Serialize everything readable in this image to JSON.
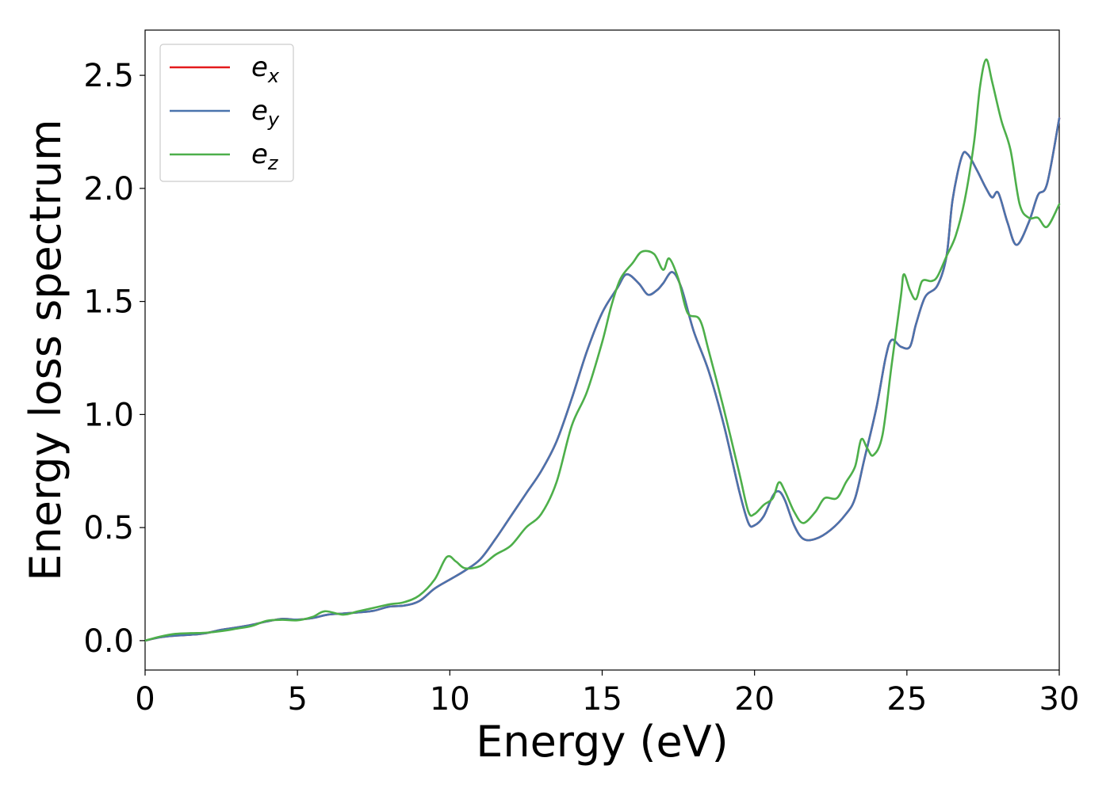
{
  "chart_data": {
    "type": "line",
    "xlabel": "Energy (eV)",
    "ylabel": "Energy loss spectrum",
    "xlim": [
      0,
      30
    ],
    "ylim": [
      -0.13,
      2.7
    ],
    "xticks": [
      0,
      5,
      10,
      15,
      20,
      25,
      30
    ],
    "xtick_labels": [
      "0",
      "5",
      "10",
      "15",
      "20",
      "25",
      "30"
    ],
    "yticks": [
      0.0,
      0.5,
      1.0,
      1.5,
      2.0,
      2.5
    ],
    "ytick_labels": [
      "0.0",
      "0.5",
      "1.0",
      "1.5",
      "2.0",
      "2.5"
    ],
    "grid": false,
    "legend_position": "top-left",
    "series": [
      {
        "name": "e_x",
        "legend_base": "e",
        "legend_sub": "x",
        "color": "#e41a1c",
        "points": [
          [
            0,
            0
          ],
          [
            0.5,
            0.015
          ],
          [
            1,
            0.022
          ],
          [
            1.5,
            0.026
          ],
          [
            2,
            0.033
          ],
          [
            2.5,
            0.048
          ],
          [
            3,
            0.058
          ],
          [
            3.5,
            0.07
          ],
          [
            4,
            0.085
          ],
          [
            4.5,
            0.096
          ],
          [
            5,
            0.093
          ],
          [
            5.5,
            0.1
          ],
          [
            6,
            0.115
          ],
          [
            6.5,
            0.12
          ],
          [
            7,
            0.125
          ],
          [
            7.5,
            0.132
          ],
          [
            8,
            0.15
          ],
          [
            8.5,
            0.155
          ],
          [
            9,
            0.175
          ],
          [
            9.5,
            0.23
          ],
          [
            10,
            0.27
          ],
          [
            10.5,
            0.31
          ],
          [
            11,
            0.36
          ],
          [
            11.5,
            0.45
          ],
          [
            12,
            0.55
          ],
          [
            12.5,
            0.65
          ],
          [
            13,
            0.75
          ],
          [
            13.5,
            0.88
          ],
          [
            14,
            1.07
          ],
          [
            14.5,
            1.28
          ],
          [
            15,
            1.45
          ],
          [
            15.5,
            1.56
          ],
          [
            15.8,
            1.62
          ],
          [
            16.2,
            1.58
          ],
          [
            16.5,
            1.53
          ],
          [
            16.8,
            1.55
          ],
          [
            17,
            1.58
          ],
          [
            17.3,
            1.63
          ],
          [
            17.6,
            1.56
          ],
          [
            18,
            1.37
          ],
          [
            18.5,
            1.19
          ],
          [
            19,
            0.95
          ],
          [
            19.5,
            0.66
          ],
          [
            19.8,
            0.52
          ],
          [
            20,
            0.51
          ],
          [
            20.3,
            0.55
          ],
          [
            20.6,
            0.64
          ],
          [
            20.8,
            0.66
          ],
          [
            21,
            0.62
          ],
          [
            21.3,
            0.51
          ],
          [
            21.6,
            0.45
          ],
          [
            22,
            0.45
          ],
          [
            22.5,
            0.49
          ],
          [
            23,
            0.56
          ],
          [
            23.3,
            0.63
          ],
          [
            23.6,
            0.8
          ],
          [
            24,
            1.03
          ],
          [
            24.3,
            1.25
          ],
          [
            24.5,
            1.33
          ],
          [
            24.8,
            1.3
          ],
          [
            25.1,
            1.3
          ],
          [
            25.3,
            1.4
          ],
          [
            25.6,
            1.52
          ],
          [
            26,
            1.57
          ],
          [
            26.3,
            1.7
          ],
          [
            26.5,
            1.95
          ],
          [
            26.8,
            2.14
          ],
          [
            27,
            2.15
          ],
          [
            27.3,
            2.08
          ],
          [
            27.6,
            2.0
          ],
          [
            27.8,
            1.96
          ],
          [
            28,
            1.98
          ],
          [
            28.3,
            1.85
          ],
          [
            28.6,
            1.75
          ],
          [
            29,
            1.85
          ],
          [
            29.3,
            1.97
          ],
          [
            29.6,
            2.02
          ],
          [
            30,
            2.31
          ]
        ]
      },
      {
        "name": "e_y",
        "legend_base": "e",
        "legend_sub": "y",
        "color": "#4a73ad",
        "points": [
          [
            0,
            0
          ],
          [
            0.5,
            0.015
          ],
          [
            1,
            0.022
          ],
          [
            1.5,
            0.026
          ],
          [
            2,
            0.033
          ],
          [
            2.5,
            0.048
          ],
          [
            3,
            0.058
          ],
          [
            3.5,
            0.07
          ],
          [
            4,
            0.085
          ],
          [
            4.5,
            0.096
          ],
          [
            5,
            0.093
          ],
          [
            5.5,
            0.1
          ],
          [
            6,
            0.115
          ],
          [
            6.5,
            0.12
          ],
          [
            7,
            0.125
          ],
          [
            7.5,
            0.132
          ],
          [
            8,
            0.15
          ],
          [
            8.5,
            0.155
          ],
          [
            9,
            0.175
          ],
          [
            9.5,
            0.23
          ],
          [
            10,
            0.27
          ],
          [
            10.5,
            0.31
          ],
          [
            11,
            0.36
          ],
          [
            11.5,
            0.45
          ],
          [
            12,
            0.55
          ],
          [
            12.5,
            0.65
          ],
          [
            13,
            0.75
          ],
          [
            13.5,
            0.88
          ],
          [
            14,
            1.07
          ],
          [
            14.5,
            1.28
          ],
          [
            15,
            1.45
          ],
          [
            15.5,
            1.56
          ],
          [
            15.8,
            1.62
          ],
          [
            16.2,
            1.58
          ],
          [
            16.5,
            1.53
          ],
          [
            16.8,
            1.55
          ],
          [
            17,
            1.58
          ],
          [
            17.3,
            1.63
          ],
          [
            17.6,
            1.56
          ],
          [
            18,
            1.37
          ],
          [
            18.5,
            1.19
          ],
          [
            19,
            0.95
          ],
          [
            19.5,
            0.66
          ],
          [
            19.8,
            0.52
          ],
          [
            20,
            0.51
          ],
          [
            20.3,
            0.55
          ],
          [
            20.6,
            0.64
          ],
          [
            20.8,
            0.66
          ],
          [
            21,
            0.62
          ],
          [
            21.3,
            0.51
          ],
          [
            21.6,
            0.45
          ],
          [
            22,
            0.45
          ],
          [
            22.5,
            0.49
          ],
          [
            23,
            0.56
          ],
          [
            23.3,
            0.63
          ],
          [
            23.6,
            0.8
          ],
          [
            24,
            1.03
          ],
          [
            24.3,
            1.25
          ],
          [
            24.5,
            1.33
          ],
          [
            24.8,
            1.3
          ],
          [
            25.1,
            1.3
          ],
          [
            25.3,
            1.4
          ],
          [
            25.6,
            1.52
          ],
          [
            26,
            1.57
          ],
          [
            26.3,
            1.7
          ],
          [
            26.5,
            1.95
          ],
          [
            26.8,
            2.14
          ],
          [
            27,
            2.15
          ],
          [
            27.3,
            2.08
          ],
          [
            27.6,
            2.0
          ],
          [
            27.8,
            1.96
          ],
          [
            28,
            1.98
          ],
          [
            28.3,
            1.85
          ],
          [
            28.6,
            1.75
          ],
          [
            29,
            1.85
          ],
          [
            29.3,
            1.97
          ],
          [
            29.6,
            2.02
          ],
          [
            30,
            2.31
          ]
        ]
      },
      {
        "name": "e_z",
        "legend_base": "e",
        "legend_sub": "z",
        "color": "#4daf4a",
        "points": [
          [
            0,
            0
          ],
          [
            0.5,
            0.018
          ],
          [
            1,
            0.03
          ],
          [
            1.5,
            0.033
          ],
          [
            2,
            0.035
          ],
          [
            2.5,
            0.042
          ],
          [
            3,
            0.053
          ],
          [
            3.5,
            0.065
          ],
          [
            4,
            0.088
          ],
          [
            4.5,
            0.092
          ],
          [
            5,
            0.09
          ],
          [
            5.5,
            0.105
          ],
          [
            5.9,
            0.13
          ],
          [
            6.5,
            0.115
          ],
          [
            7,
            0.13
          ],
          [
            7.5,
            0.145
          ],
          [
            8,
            0.16
          ],
          [
            8.5,
            0.17
          ],
          [
            9,
            0.2
          ],
          [
            9.5,
            0.27
          ],
          [
            9.9,
            0.37
          ],
          [
            10.2,
            0.35
          ],
          [
            10.5,
            0.32
          ],
          [
            11,
            0.33
          ],
          [
            11.5,
            0.38
          ],
          [
            12,
            0.42
          ],
          [
            12.5,
            0.5
          ],
          [
            13,
            0.56
          ],
          [
            13.5,
            0.7
          ],
          [
            14,
            0.95
          ],
          [
            14.5,
            1.1
          ],
          [
            15,
            1.32
          ],
          [
            15.3,
            1.48
          ],
          [
            15.6,
            1.6
          ],
          [
            16,
            1.67
          ],
          [
            16.3,
            1.72
          ],
          [
            16.7,
            1.71
          ],
          [
            17,
            1.64
          ],
          [
            17.2,
            1.69
          ],
          [
            17.5,
            1.6
          ],
          [
            17.8,
            1.45
          ],
          [
            18.2,
            1.42
          ],
          [
            18.5,
            1.28
          ],
          [
            19,
            1.02
          ],
          [
            19.5,
            0.74
          ],
          [
            19.8,
            0.57
          ],
          [
            20,
            0.56
          ],
          [
            20.3,
            0.6
          ],
          [
            20.6,
            0.63
          ],
          [
            20.8,
            0.7
          ],
          [
            21,
            0.66
          ],
          [
            21.3,
            0.57
          ],
          [
            21.6,
            0.52
          ],
          [
            22,
            0.57
          ],
          [
            22.3,
            0.63
          ],
          [
            22.7,
            0.63
          ],
          [
            23,
            0.7
          ],
          [
            23.3,
            0.77
          ],
          [
            23.5,
            0.89
          ],
          [
            23.7,
            0.85
          ],
          [
            23.9,
            0.82
          ],
          [
            24.2,
            0.91
          ],
          [
            24.5,
            1.22
          ],
          [
            24.8,
            1.52
          ],
          [
            24.9,
            1.62
          ],
          [
            25.1,
            1.55
          ],
          [
            25.3,
            1.51
          ],
          [
            25.5,
            1.59
          ],
          [
            25.8,
            1.59
          ],
          [
            26,
            1.61
          ],
          [
            26.3,
            1.7
          ],
          [
            26.6,
            1.79
          ],
          [
            26.9,
            1.95
          ],
          [
            27.2,
            2.2
          ],
          [
            27.4,
            2.45
          ],
          [
            27.6,
            2.57
          ],
          [
            27.8,
            2.47
          ],
          [
            28.1,
            2.3
          ],
          [
            28.4,
            2.17
          ],
          [
            28.7,
            1.93
          ],
          [
            29,
            1.87
          ],
          [
            29.3,
            1.87
          ],
          [
            29.6,
            1.83
          ],
          [
            30,
            1.93
          ]
        ]
      }
    ]
  }
}
